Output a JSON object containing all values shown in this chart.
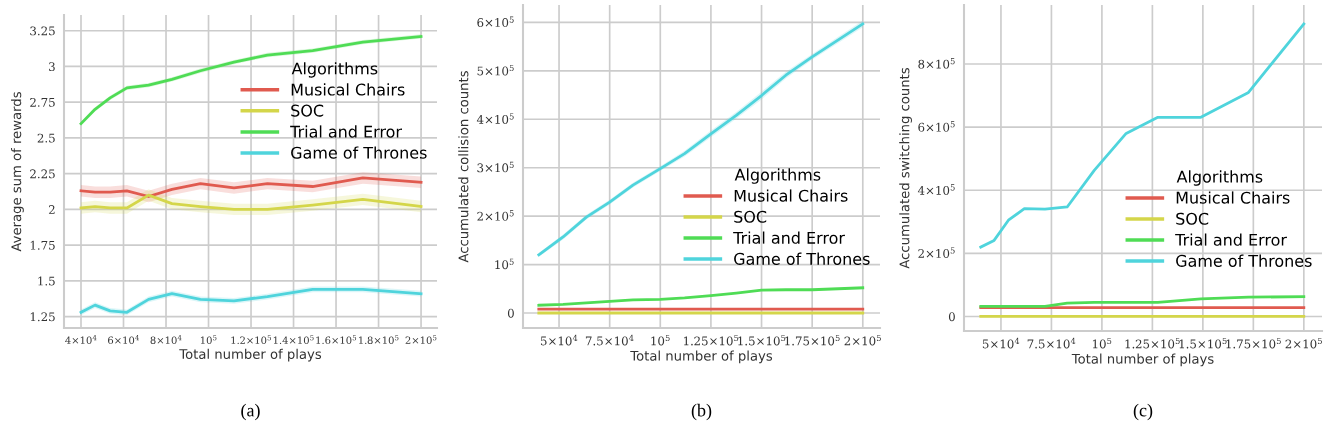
{
  "chart_data": [
    {
      "type": "line",
      "xlabel": "Total number of plays",
      "ylabel": "Average sum of rewards",
      "legend_title": "Algorithms",
      "legend": "right",
      "grid": true,
      "annotations": [
        "(a)"
      ],
      "x": [
        40000,
        46600,
        53700,
        61600,
        71800,
        82800,
        96200,
        112000,
        127700,
        149000,
        172600,
        200000
      ],
      "xlim": [
        32000,
        207500
      ],
      "ylim": [
        1.17,
        3.36
      ],
      "xticks": [
        {
          "value": 40000,
          "label": "4×10$^{4}$"
        },
        {
          "value": 60000,
          "label": "6×10$^{4}$"
        },
        {
          "value": 80000,
          "label": "8×10$^{4}$"
        },
        {
          "value": 100000,
          "label": "10$^{5}$"
        },
        {
          "value": 120000,
          "label": "1.2×10$^{5}$"
        },
        {
          "value": 140000,
          "label": "1.4×10$^{5}$"
        },
        {
          "value": 160000,
          "label": "1.6×10$^{5}$"
        },
        {
          "value": 180000,
          "label": "1.8×10$^{5}$"
        },
        {
          "value": 200000,
          "label": "2×10$^{5}$"
        }
      ],
      "yticks": [
        1.25,
        1.5,
        1.75,
        {
          "value": 2,
          "label": "2"
        },
        2.25,
        2.5,
        2.75,
        {
          "value": 3,
          "label": "3"
        },
        3.25
      ],
      "series": [
        {
          "name": "Musical Chairs",
          "color": "#e05a4f",
          "values": [
            2.13,
            2.12,
            2.12,
            2.13,
            2.09,
            2.14,
            2.18,
            2.15,
            2.18,
            2.16,
            2.22,
            2.19
          ],
          "lower": [
            2.09,
            2.08,
            2.08,
            2.09,
            2.05,
            2.1,
            2.14,
            2.11,
            2.14,
            2.12,
            2.18,
            2.15
          ],
          "upper": [
            2.17,
            2.16,
            2.16,
            2.17,
            2.13,
            2.18,
            2.22,
            2.19,
            2.22,
            2.2,
            2.26,
            2.23
          ]
        },
        {
          "name": "SOC",
          "color": "#d4d64a",
          "values": [
            2.01,
            2.02,
            2.01,
            2.01,
            2.1,
            2.04,
            2.02,
            2.0,
            2.0,
            2.03,
            2.07,
            2.02
          ],
          "lower": [
            1.97,
            1.98,
            1.97,
            1.97,
            2.06,
            2.0,
            1.98,
            1.96,
            1.96,
            1.99,
            2.03,
            1.98
          ],
          "upper": [
            2.05,
            2.06,
            2.05,
            2.05,
            2.14,
            2.08,
            2.06,
            2.04,
            2.04,
            2.07,
            2.11,
            2.06
          ]
        },
        {
          "name": "Trial and Error",
          "color": "#4fdc55",
          "values": [
            2.6,
            2.7,
            2.78,
            2.85,
            2.87,
            2.91,
            2.97,
            3.03,
            3.08,
            3.11,
            3.17,
            3.21
          ],
          "lower": [
            2.585,
            2.685,
            2.765,
            2.835,
            2.855,
            2.895,
            2.955,
            3.015,
            3.065,
            3.095,
            3.155,
            3.195
          ],
          "upper": [
            2.615,
            2.715,
            2.795,
            2.865,
            2.885,
            2.925,
            2.985,
            3.045,
            3.095,
            3.125,
            3.185,
            3.225
          ]
        },
        {
          "name": "Game of Thrones",
          "color": "#4fd4dc",
          "values": [
            1.28,
            1.33,
            1.29,
            1.28,
            1.37,
            1.41,
            1.37,
            1.36,
            1.39,
            1.44,
            1.44,
            1.41
          ],
          "lower": [
            1.26,
            1.31,
            1.27,
            1.26,
            1.35,
            1.39,
            1.35,
            1.34,
            1.37,
            1.42,
            1.42,
            1.39
          ],
          "upper": [
            1.3,
            1.35,
            1.31,
            1.3,
            1.39,
            1.43,
            1.39,
            1.38,
            1.41,
            1.46,
            1.46,
            1.43
          ]
        }
      ]
    },
    {
      "type": "line",
      "xlabel": "Total number of plays",
      "ylabel": "Accumulated collision counts",
      "legend_title": "Algorithms",
      "legend": "lower right",
      "grid": true,
      "annotations": [
        "(b)"
      ],
      "x": [
        40000,
        52000,
        63500,
        75000,
        86500,
        100000,
        112000,
        125000,
        137500,
        150000,
        162000,
        175000,
        200000
      ],
      "xlim": [
        32200,
        208500
      ],
      "ylim": [
        -31000,
        636000
      ],
      "xticks": [
        {
          "value": 50000,
          "label": "5×10$^{4}$"
        },
        {
          "value": 75000,
          "label": "7.5×10$^{4}$"
        },
        {
          "value": 100000,
          "label": "10$^{5}$"
        },
        {
          "value": 125000,
          "label": "1.25×10$^{5}$"
        },
        {
          "value": 150000,
          "label": "1.5×10$^{5}$"
        },
        {
          "value": 175000,
          "label": "1.75×10$^{5}$"
        },
        {
          "value": 200000,
          "label": "2×10$^{5}$"
        }
      ],
      "yticks": [
        0,
        {
          "value": 100000,
          "label": "10$^{5}$"
        },
        {
          "value": 200000,
          "label": "2×10$^{5}$"
        },
        {
          "value": 300000,
          "label": "3×10$^{5}$"
        },
        {
          "value": 400000,
          "label": "4×10$^{5}$"
        },
        {
          "value": 500000,
          "label": "5×10$^{5}$"
        },
        {
          "value": 600000,
          "label": "6×10$^{5}$"
        }
      ],
      "series": [
        {
          "name": "Musical Chairs",
          "color": "#e05a4f",
          "values": [
            8000,
            8000,
            8000,
            8000,
            8000,
            8000,
            8000,
            8000,
            8000,
            8000,
            8000,
            8000,
            8000
          ]
        },
        {
          "name": "SOC",
          "color": "#d4d64a",
          "values": [
            0,
            0,
            0,
            0,
            0,
            0,
            0,
            0,
            0,
            0,
            0,
            0,
            0
          ]
        },
        {
          "name": "Trial and Error",
          "color": "#4fdc55",
          "values": [
            16000,
            18000,
            21000,
            24000,
            27000,
            28000,
            31000,
            36000,
            41000,
            47000,
            48000,
            48000,
            52000
          ]
        },
        {
          "name": "Game of Thrones",
          "color": "#4fd4dc",
          "values": [
            120000,
            157000,
            198000,
            229000,
            264000,
            298000,
            329000,
            370000,
            408000,
            449000,
            491000,
            529000,
            597000
          ],
          "lower": [
            116000,
            152000,
            193000,
            224000,
            259000,
            293000,
            323000,
            363000,
            401000,
            441000,
            484000,
            523000,
            590000
          ],
          "upper": [
            124000,
            162000,
            203000,
            234000,
            269000,
            303000,
            335000,
            377000,
            415000,
            457000,
            498000,
            535000,
            604000
          ]
        }
      ]
    },
    {
      "type": "line",
      "xlabel": "Total number of plays",
      "ylabel": "Accumulated switching counts",
      "legend_title": "Algorithms",
      "legend": "lower right",
      "grid": true,
      "annotations": [
        "(c)"
      ],
      "x": [
        40000,
        46600,
        53700,
        61600,
        71800,
        82800,
        96200,
        112000,
        127700,
        149000,
        172600,
        200000
      ],
      "xlim": [
        31700,
        209000
      ],
      "ylim": [
        -46000,
        987000
      ],
      "xticks": [
        {
          "value": 50000,
          "label": "5×10$^{4}$"
        },
        {
          "value": 75000,
          "label": "7.5×10$^{4}$"
        },
        {
          "value": 100000,
          "label": "10$^{5}$"
        },
        {
          "value": 125000,
          "label": "1.25×10$^{5}$"
        },
        {
          "value": 150000,
          "label": "1.5×10$^{5}$"
        },
        {
          "value": 175000,
          "label": "1.75×10$^{5}$"
        },
        {
          "value": 200000,
          "label": "2×10$^{5}$"
        }
      ],
      "yticks": [
        0,
        {
          "value": 200000,
          "label": "2×10$^{5}$"
        },
        {
          "value": 400000,
          "label": "4×10$^{5}$"
        },
        {
          "value": 600000,
          "label": "6×10$^{5}$"
        },
        {
          "value": 800000,
          "label": "8×10$^{5}$"
        }
      ],
      "series": [
        {
          "name": "Musical Chairs",
          "color": "#e05a4f",
          "values": [
            28000,
            28000,
            28000,
            28000,
            28000,
            28000,
            28000,
            28000,
            28000,
            28000,
            28000,
            28000
          ]
        },
        {
          "name": "SOC",
          "color": "#d4d64a",
          "values": [
            0,
            0,
            0,
            0,
            0,
            0,
            0,
            0,
            0,
            0,
            0,
            0
          ]
        },
        {
          "name": "Trial and Error",
          "color": "#4fdc55",
          "values": [
            32000,
            32000,
            32000,
            32000,
            32000,
            42000,
            45000,
            45000,
            45000,
            56000,
            61000,
            63000
          ]
        },
        {
          "name": "Game of Thrones",
          "color": "#4fd4dc",
          "values": [
            220000,
            241000,
            305000,
            342000,
            340000,
            347000,
            463000,
            580000,
            631000,
            631000,
            710000,
            927000
          ]
        }
      ]
    }
  ]
}
